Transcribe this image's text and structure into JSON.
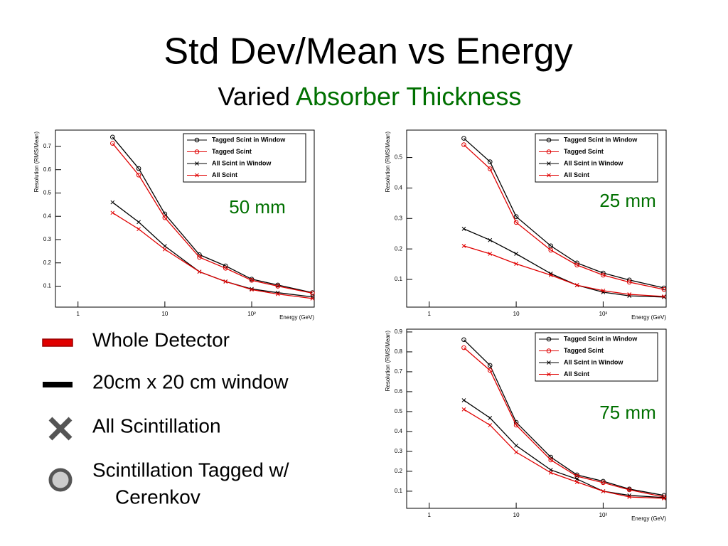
{
  "title": "Std Dev/Mean vs Energy",
  "subtitle": [
    "Varied",
    "Absorber Thickness"
  ],
  "key": [
    {
      "lines": [
        "Whole Detector"
      ],
      "symbol": "red-bar"
    },
    {
      "lines": [
        "20cm x 20 cm window"
      ],
      "symbol": "black-bar"
    },
    {
      "lines": [
        "All Scintillation"
      ],
      "symbol": "cross"
    },
    {
      "lines": [
        "Scintillation Tagged w/",
        "Cerenkov"
      ],
      "symbol": "ring"
    }
  ],
  "chart_data": [
    {
      "type": "line",
      "annotation": "50 mm",
      "xlabel": "Energy (GeV)",
      "ylabel": "Resolution (RMS/Mean)",
      "xscale": "log",
      "xlim": [
        0.55,
        525
      ],
      "xticks": [
        1,
        10,
        {
          "value": 100,
          "label": "10²"
        }
      ],
      "ylim": [
        0.01,
        0.77
      ],
      "yticks": [
        0.1,
        0.2,
        0.3,
        0.4,
        0.5,
        0.6,
        0.7
      ],
      "legend": "upper right",
      "grid": false,
      "x": [
        2.5,
        5,
        10,
        25,
        50,
        100,
        200,
        500
      ],
      "series": [
        {
          "name": "Tagged Scint in Window",
          "color": "#000000",
          "marker": "circle",
          "values": [
            0.74,
            0.605,
            0.41,
            0.235,
            0.187,
            0.13,
            0.105,
            0.072
          ]
        },
        {
          "name": "Tagged Scint",
          "color": "#e00000",
          "marker": "circle",
          "values": [
            0.713,
            0.577,
            0.394,
            0.224,
            0.177,
            0.125,
            0.1,
            0.07
          ]
        },
        {
          "name": "All Scint in Window",
          "color": "#000000",
          "marker": "x",
          "values": [
            0.46,
            0.375,
            0.272,
            0.162,
            0.12,
            0.088,
            0.072,
            0.054
          ]
        },
        {
          "name": "All Scint",
          "color": "#e00000",
          "marker": "x",
          "values": [
            0.415,
            0.345,
            0.258,
            0.162,
            0.12,
            0.085,
            0.066,
            0.047
          ]
        }
      ]
    },
    {
      "type": "line",
      "annotation": "25 mm",
      "xlabel": "Energy (GeV)",
      "ylabel": "Resolution (RMS/Mean)",
      "xscale": "log",
      "xlim": [
        0.55,
        530
      ],
      "xticks": [
        1,
        10,
        {
          "value": 100,
          "label": "10²"
        }
      ],
      "ylim": [
        0.009,
        0.59
      ],
      "yticks": [
        0.1,
        0.2,
        0.3,
        0.4,
        0.5
      ],
      "legend": "upper right",
      "grid": false,
      "x": [
        2.5,
        5,
        10,
        25,
        50,
        100,
        200,
        500
      ],
      "series": [
        {
          "name": "Tagged Scint in Window",
          "color": "#000000",
          "marker": "circle",
          "values": [
            0.563,
            0.486,
            0.306,
            0.21,
            0.154,
            0.121,
            0.098,
            0.072
          ]
        },
        {
          "name": "Tagged Scint",
          "color": "#e00000",
          "marker": "circle",
          "values": [
            0.542,
            0.463,
            0.287,
            0.196,
            0.147,
            0.114,
            0.091,
            0.067
          ]
        },
        {
          "name": "All Scint in Window",
          "color": "#000000",
          "marker": "x",
          "values": [
            0.266,
            0.229,
            0.184,
            0.119,
            0.081,
            0.058,
            0.046,
            0.042
          ]
        },
        {
          "name": "All Scint",
          "color": "#e00000",
          "marker": "x",
          "values": [
            0.21,
            0.184,
            0.151,
            0.114,
            0.081,
            0.063,
            0.051,
            0.044
          ]
        }
      ]
    },
    {
      "type": "line",
      "annotation": "75 mm",
      "xlabel": "Energy (GeV)",
      "ylabel": "Resolution (RMS/Mean)",
      "xscale": "log",
      "xlim": [
        0.55,
        530
      ],
      "xticks": [
        1,
        10,
        {
          "value": 100,
          "label": "10²"
        }
      ],
      "ylim": [
        0.014,
        0.914
      ],
      "yticks": [
        0.1,
        0.2,
        0.3,
        0.4,
        0.5,
        0.6,
        0.7,
        0.8,
        0.9
      ],
      "legend": "upper right",
      "grid": false,
      "x": [
        2.5,
        5,
        10,
        25,
        50,
        100,
        200,
        500
      ],
      "series": [
        {
          "name": "Tagged Scint in Window",
          "color": "#000000",
          "marker": "circle",
          "values": [
            0.861,
            0.732,
            0.446,
            0.271,
            0.182,
            0.15,
            0.111,
            0.079
          ]
        },
        {
          "name": "Tagged Scint",
          "color": "#e00000",
          "marker": "circle",
          "values": [
            0.821,
            0.707,
            0.432,
            0.257,
            0.175,
            0.143,
            0.107,
            0.071
          ]
        },
        {
          "name": "All Scint in Window",
          "color": "#000000",
          "marker": "x",
          "values": [
            0.557,
            0.468,
            0.329,
            0.207,
            0.161,
            0.1,
            0.079,
            0.068
          ]
        },
        {
          "name": "All Scint",
          "color": "#e00000",
          "marker": "x",
          "values": [
            0.511,
            0.432,
            0.296,
            0.193,
            0.146,
            0.1,
            0.071,
            0.064
          ]
        }
      ]
    }
  ]
}
